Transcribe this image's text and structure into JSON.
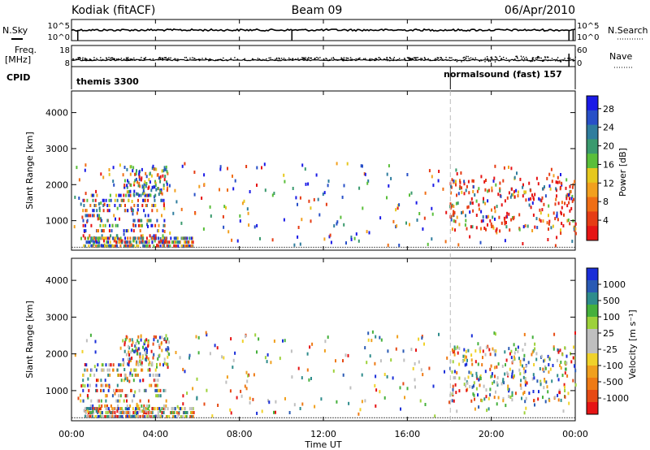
{
  "header": {
    "station": "Kodiak (fitACF)",
    "beam": "Beam 09",
    "date": "06/Apr/2010"
  },
  "strips": {
    "nsky": {
      "label": "N.Sky",
      "ticks": [
        "10^5",
        "10^0"
      ]
    },
    "nsearch": {
      "label": "N.Search",
      "ticks": [
        "10^5",
        "10^0"
      ]
    },
    "freq": {
      "label_line1": "Freq.",
      "label_line2": "[MHz]",
      "ticks": [
        "18",
        "8"
      ]
    },
    "nave": {
      "label": "Nave",
      "ticks": [
        "60",
        "0"
      ]
    },
    "cpid": {
      "label": "CPID",
      "segments": [
        {
          "name": "themis 3300",
          "start": 0,
          "end": 18.05
        },
        {
          "name": "normalsound (fast) 157",
          "start": 18.05,
          "end": 24
        }
      ]
    }
  },
  "time_axis": {
    "label": "Time UT",
    "ticks": [
      "00:00",
      "04:00",
      "08:00",
      "12:00",
      "16:00",
      "20:00",
      "00:00"
    ]
  },
  "chart_data": [
    {
      "type": "heatmap",
      "name": "power",
      "xlabel": "Time UT",
      "ylabel": "Slant Range [km]",
      "xlim": [
        0,
        24
      ],
      "ylim": [
        180,
        4600
      ],
      "yticks": [
        1000,
        2000,
        3000,
        4000
      ],
      "colorbar": {
        "label": "Power [dB]",
        "ticks": [
          "4",
          "8",
          "12",
          "16",
          "20",
          "24",
          "28"
        ],
        "colors": [
          "#1a1ae6",
          "#2850c8",
          "#2f7d9e",
          "#3a9a6e",
          "#5abf3a",
          "#e6c81e",
          "#f2a01e",
          "#f06e14",
          "#e63c14",
          "#e61414"
        ]
      },
      "scatter_mark_note_free": true
    },
    {
      "type": "heatmap",
      "name": "velocity",
      "xlabel": "Time UT",
      "ylabel": "Slant Range [km]",
      "xlim": [
        0,
        24
      ],
      "ylim": [
        180,
        4600
      ],
      "yticks": [
        1000,
        2000,
        3000,
        4000
      ],
      "colorbar": {
        "label": "Velocity [m s⁻¹]",
        "ticks": [
          "1000",
          "500",
          "100",
          "25",
          "-25",
          "-100",
          "-500",
          "-1000"
        ],
        "colors": [
          "#1a2ed8",
          "#2a5ab4",
          "#2e8c8c",
          "#45b03c",
          "#9dd13a",
          "#bfbfbf",
          "#bfbfbf",
          "#f0d22a",
          "#f0a01e",
          "#ee7a14",
          "#e64a14",
          "#e61414"
        ]
      }
    }
  ]
}
